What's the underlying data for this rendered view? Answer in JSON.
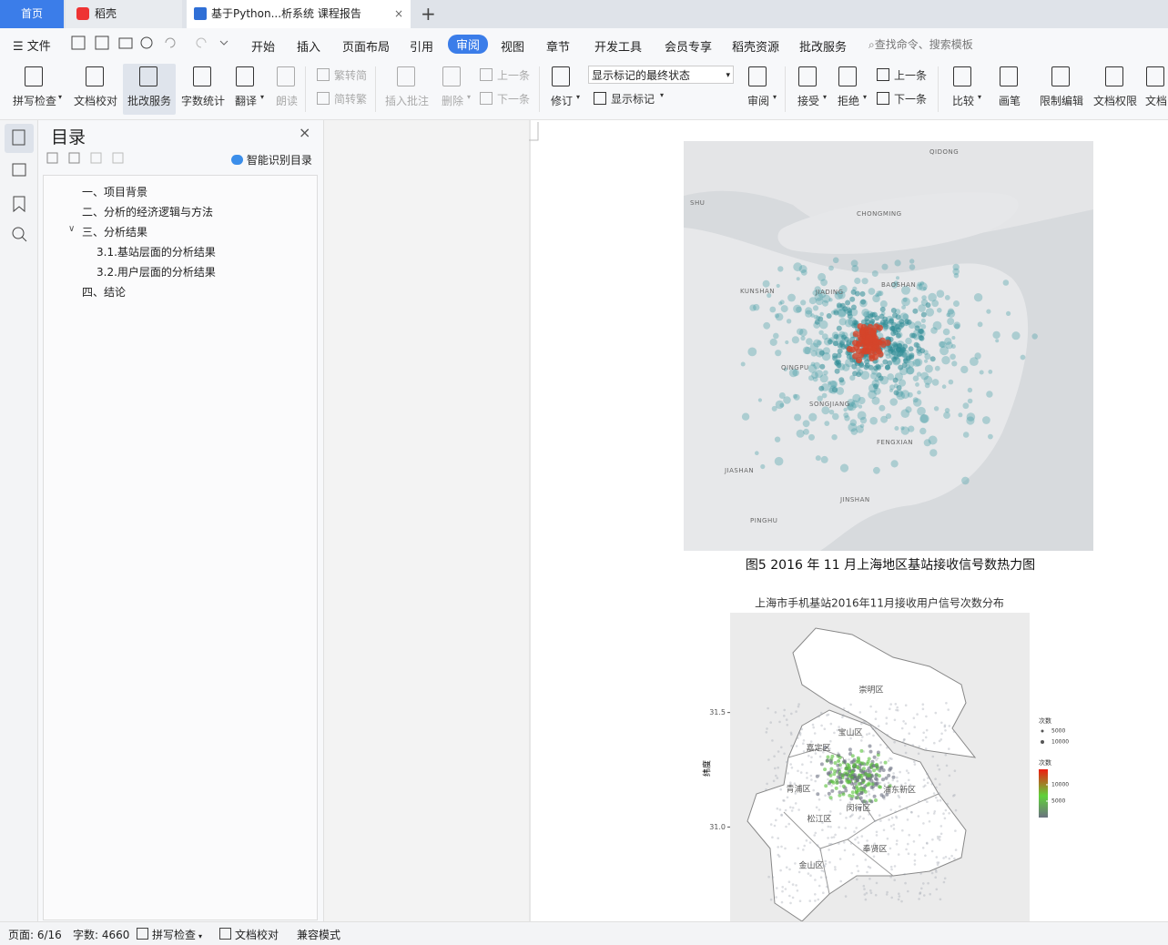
{
  "tabs": [
    "首页",
    "稻壳",
    "基于Python...析系统 课程报告"
  ],
  "menu": {
    "file": "文件",
    "items": [
      "开始",
      "插入",
      "页面布局",
      "引用",
      "审阅",
      "视图",
      "章节",
      "开发工具",
      "会员专享",
      "稻壳资源",
      "批改服务"
    ],
    "search": "查找命令、搜索模板"
  },
  "toolbar": {
    "buttons": [
      "拼写检查",
      "文档校对",
      "批改服务",
      "字数统计",
      "翻译",
      "朗读",
      "繁转简",
      "简转繁",
      "插入批注",
      "删除",
      "上一条",
      "下一条",
      "修订",
      "显示标记",
      "审阅",
      "接受",
      "拒绝",
      "上一条",
      "下一条",
      "比较",
      "画笔",
      "限制编辑",
      "文档权限",
      "文档"
    ],
    "track_state": "显示标记的最终状态"
  },
  "toc": {
    "title": "目录",
    "smart": "智能识别目录",
    "items": [
      "一、项目背景",
      "二、分析的经济逻辑与方法",
      "三、分析结果",
      "3.1.基站层面的分析结果",
      "3.2.用户层面的分析结果",
      "四、结论"
    ]
  },
  "document": {
    "heatmap_labels": [
      "QIDONG",
      "SHU",
      "CHONGMING",
      "KUNSHAN",
      "JIADING",
      "BAOSHAN",
      "QINGPU",
      "SONGJIANG",
      "FENGXIAN",
      "JIASHAN",
      "JINSHAN",
      "PINGHU"
    ],
    "figure_caption": "图5   2016 年 11 月上海地区基站接收信号数热力图",
    "chart": {
      "title": "上海市手机基站2016年11月接收用户信号次数分布",
      "y_label": "纬度",
      "ylim": [
        30.588,
        31.936
      ],
      "yticks": [
        {
          "value": 31.0,
          "label": "31.0"
        },
        31.5
      ],
      "districts": [
        "崇明区",
        "宝山区",
        "嘉定区",
        "青浦区",
        "浦东新区",
        "闵行区",
        "松江区",
        "奉贤区",
        "金山区"
      ],
      "size_legend": {
        "title": "次数",
        "values": [
          5000,
          10000
        ]
      },
      "color_legend": {
        "title": "次数",
        "lim": [
          0,
          14700
        ],
        "ticks": [
          10000,
          5000
        ]
      }
    }
  },
  "status": [
    "页面: 6/16",
    "字数: 4660",
    "拼写检查",
    "文档校对",
    "兼容模式"
  ]
}
